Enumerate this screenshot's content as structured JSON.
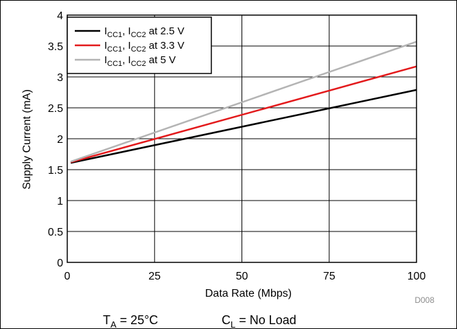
{
  "chart_data": {
    "type": "line",
    "xlabel": "Data Rate (Mbps)",
    "ylabel": "Supply Current (mA)",
    "xlim": [
      0,
      100
    ],
    "ylim": [
      0,
      4
    ],
    "xticks": [
      "0",
      "25",
      "50",
      "75",
      "100"
    ],
    "yticks": [
      "0",
      "0.5",
      "1",
      "1.5",
      "2",
      "2.5",
      "3",
      "3.5",
      "4"
    ],
    "grid": true,
    "legend_position": "top-left",
    "series": [
      {
        "name_main": "I",
        "name_sub1": "CC1",
        "name_mid": ", I",
        "name_sub2": "CC2",
        "name_tail": " at 2.5 V",
        "color": "#000000",
        "x": [
          1,
          100
        ],
        "y": [
          1.61,
          2.79
        ]
      },
      {
        "name_main": "I",
        "name_sub1": "CC1",
        "name_mid": ", I",
        "name_sub2": "CC2",
        "name_tail": " at 3.3 V",
        "color": "#e31a1c",
        "x": [
          1,
          100
        ],
        "y": [
          1.62,
          3.17
        ]
      },
      {
        "name_main": "I",
        "name_sub1": "CC1",
        "name_mid": ", I",
        "name_sub2": "CC2",
        "name_tail": " at 5 V",
        "color": "#b4b4b4",
        "x": [
          1,
          100
        ],
        "y": [
          1.63,
          3.57
        ]
      }
    ],
    "annotation_code": "D008"
  },
  "footer": {
    "ta_main": "T",
    "ta_sub": "A",
    "ta_value": " = 25°C",
    "cl_main": "C",
    "cl_sub": "L",
    "cl_value": " = No Load"
  }
}
